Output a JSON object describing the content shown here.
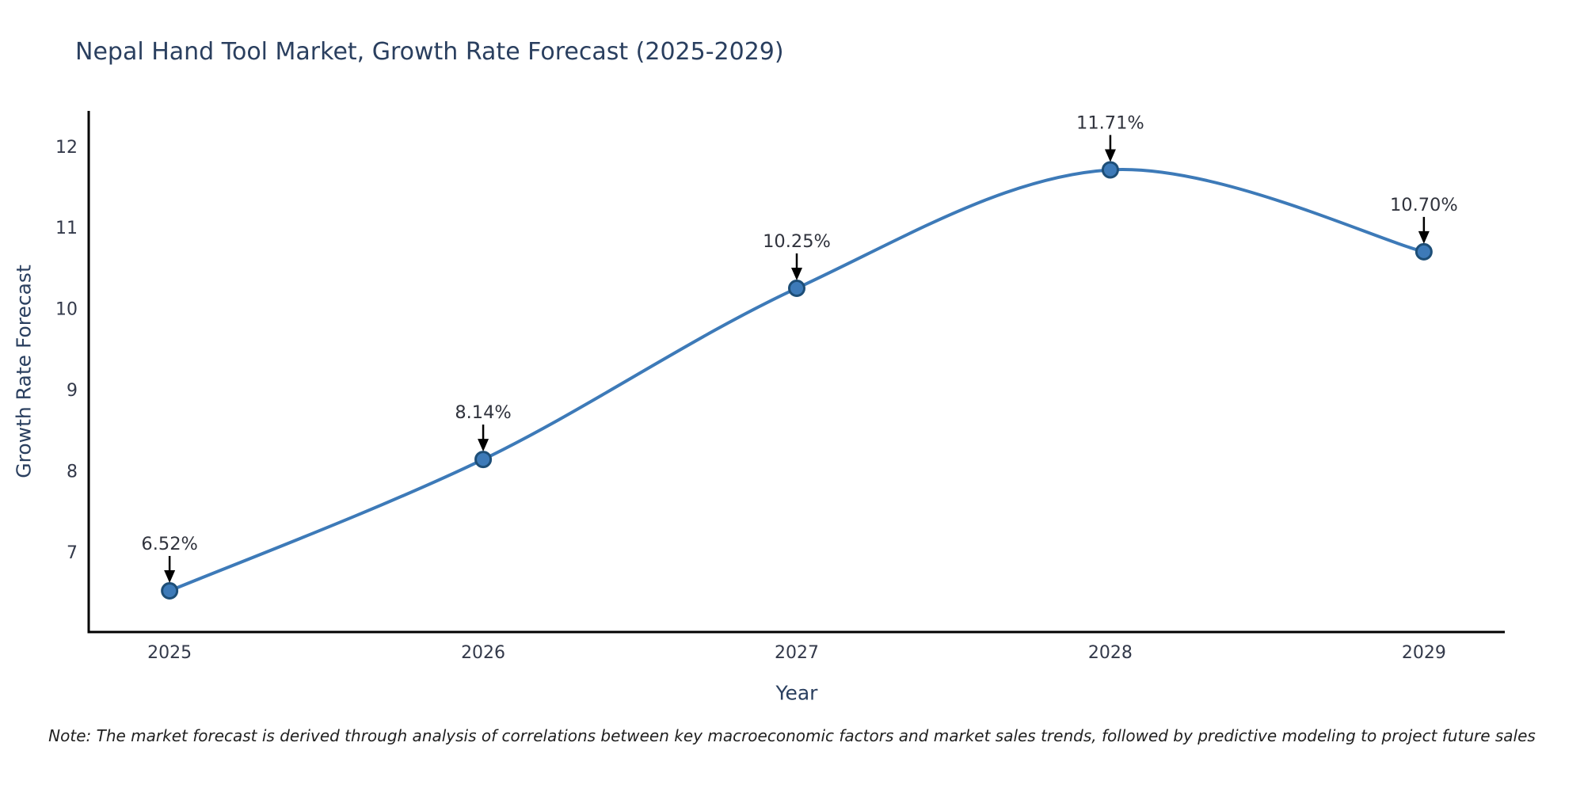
{
  "chart_data": {
    "type": "line",
    "title": "Nepal Hand Tool Market, Growth Rate Forecast (2025-2029)",
    "xlabel": "Year",
    "ylabel": "Growth Rate Forecast",
    "categories": [
      2025,
      2026,
      2027,
      2028,
      2029
    ],
    "values": [
      6.52,
      8.14,
      10.25,
      11.71,
      10.7
    ],
    "point_labels": [
      "6.52%",
      "8.14%",
      "10.25%",
      "11.71%",
      "10.70%"
    ],
    "y_ticks": [
      7,
      8,
      9,
      10,
      11,
      12
    ],
    "x_tick_labels": [
      "2025",
      "2026",
      "2027",
      "2028",
      "2029"
    ],
    "xlim": [
      2024.742,
      2029.258
    ],
    "ylim": [
      6.012,
      12.437
    ],
    "line_shape": "spline",
    "grid": false,
    "legend": "none",
    "colors": {
      "line": "#3d7ab8",
      "marker_fill": "#3d7ab8",
      "marker_edge": "#1d4e77",
      "axis": "#000000",
      "tick_text": "#33394a",
      "title_text": "#2a3f5f",
      "annotation_text": "#30333d",
      "arrow": "#000000"
    }
  },
  "footnote": "Note: The market forecast is derived through analysis of correlations between key macroeconomic factors and market sales trends, followed by predictive modeling to project future sales"
}
